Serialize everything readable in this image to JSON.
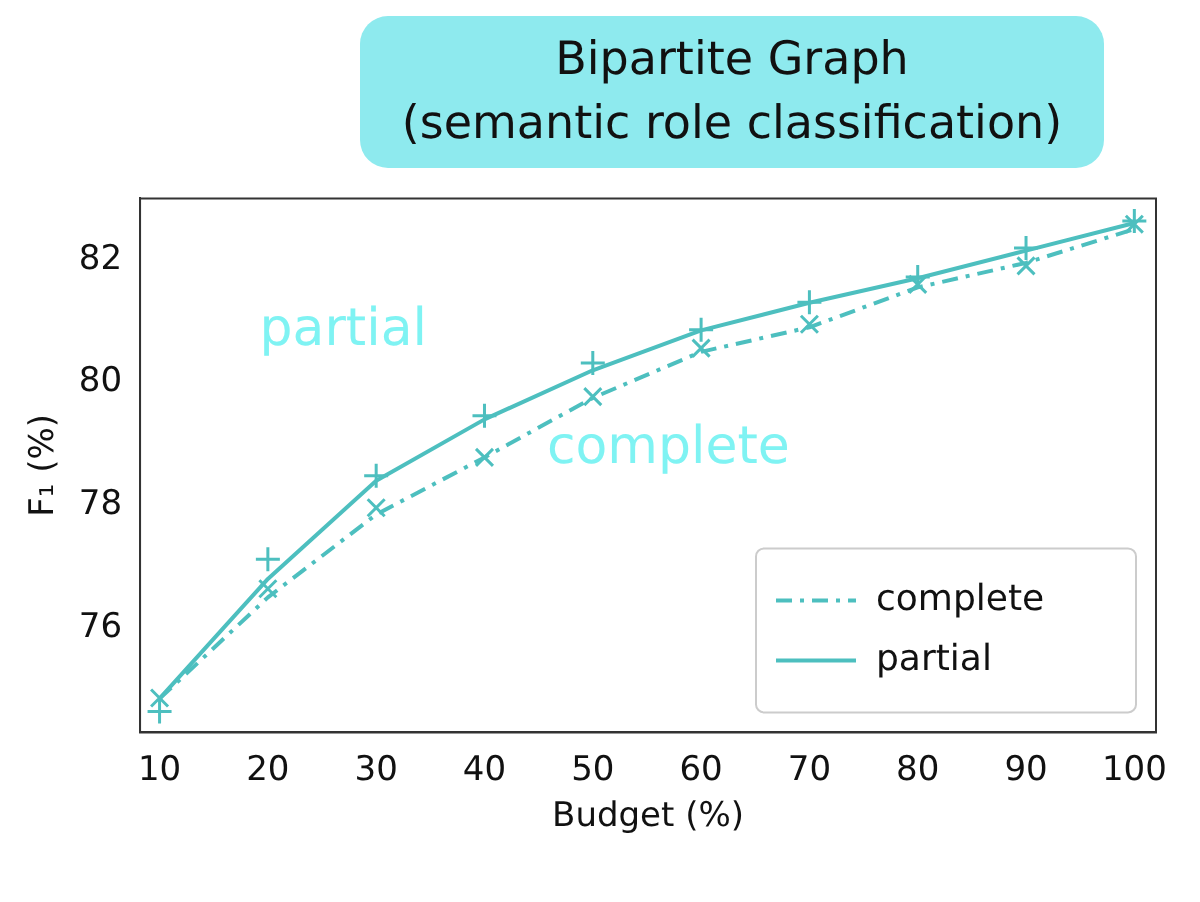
{
  "chart_data": {
    "type": "line",
    "title": "Bipartite Graph",
    "subtitle": "(semantic role classification)",
    "xlabel": "Budget (%)",
    "ylabel": "F₁ (%)",
    "x": [
      10,
      20,
      30,
      40,
      50,
      60,
      70,
      80,
      90,
      100
    ],
    "series": [
      {
        "name": "complete",
        "color": "#4dbfbf",
        "line_style": "dashdot",
        "marker": "none",
        "values": [
          74.85,
          76.5,
          77.85,
          78.78,
          79.75,
          80.5,
          80.9,
          81.55,
          81.95,
          82.5
        ]
      },
      {
        "name": "partial",
        "color": "#4dbfbf",
        "line_style": "solid",
        "marker": "none",
        "values": [
          74.85,
          76.8,
          78.4,
          79.4,
          80.2,
          80.85,
          81.3,
          81.7,
          82.15,
          82.6
        ]
      },
      {
        "type": "scatter",
        "color": "#4dbfbf",
        "marker": "x",
        "values": [
          74.86,
          76.64,
          77.96,
          78.78,
          79.77,
          80.56,
          80.95,
          81.6,
          81.9,
          82.58
        ]
      },
      {
        "type": "scatter",
        "color": "#4dbfbf",
        "marker": "cross",
        "values": [
          74.64,
          77.12,
          78.48,
          79.46,
          80.32,
          80.86,
          81.31,
          81.72,
          82.19,
          82.63
        ]
      }
    ],
    "annotations": [
      "partial",
      "complete"
    ],
    "xlim": [
      8.2,
      102
    ],
    "xticks": [
      10,
      20,
      30,
      40,
      50,
      60,
      70,
      80,
      90,
      100
    ],
    "ylim": [
      74.3,
      83
    ],
    "yticks": [
      76,
      78,
      80,
      82
    ],
    "grid": false,
    "legend": "bottom right"
  }
}
